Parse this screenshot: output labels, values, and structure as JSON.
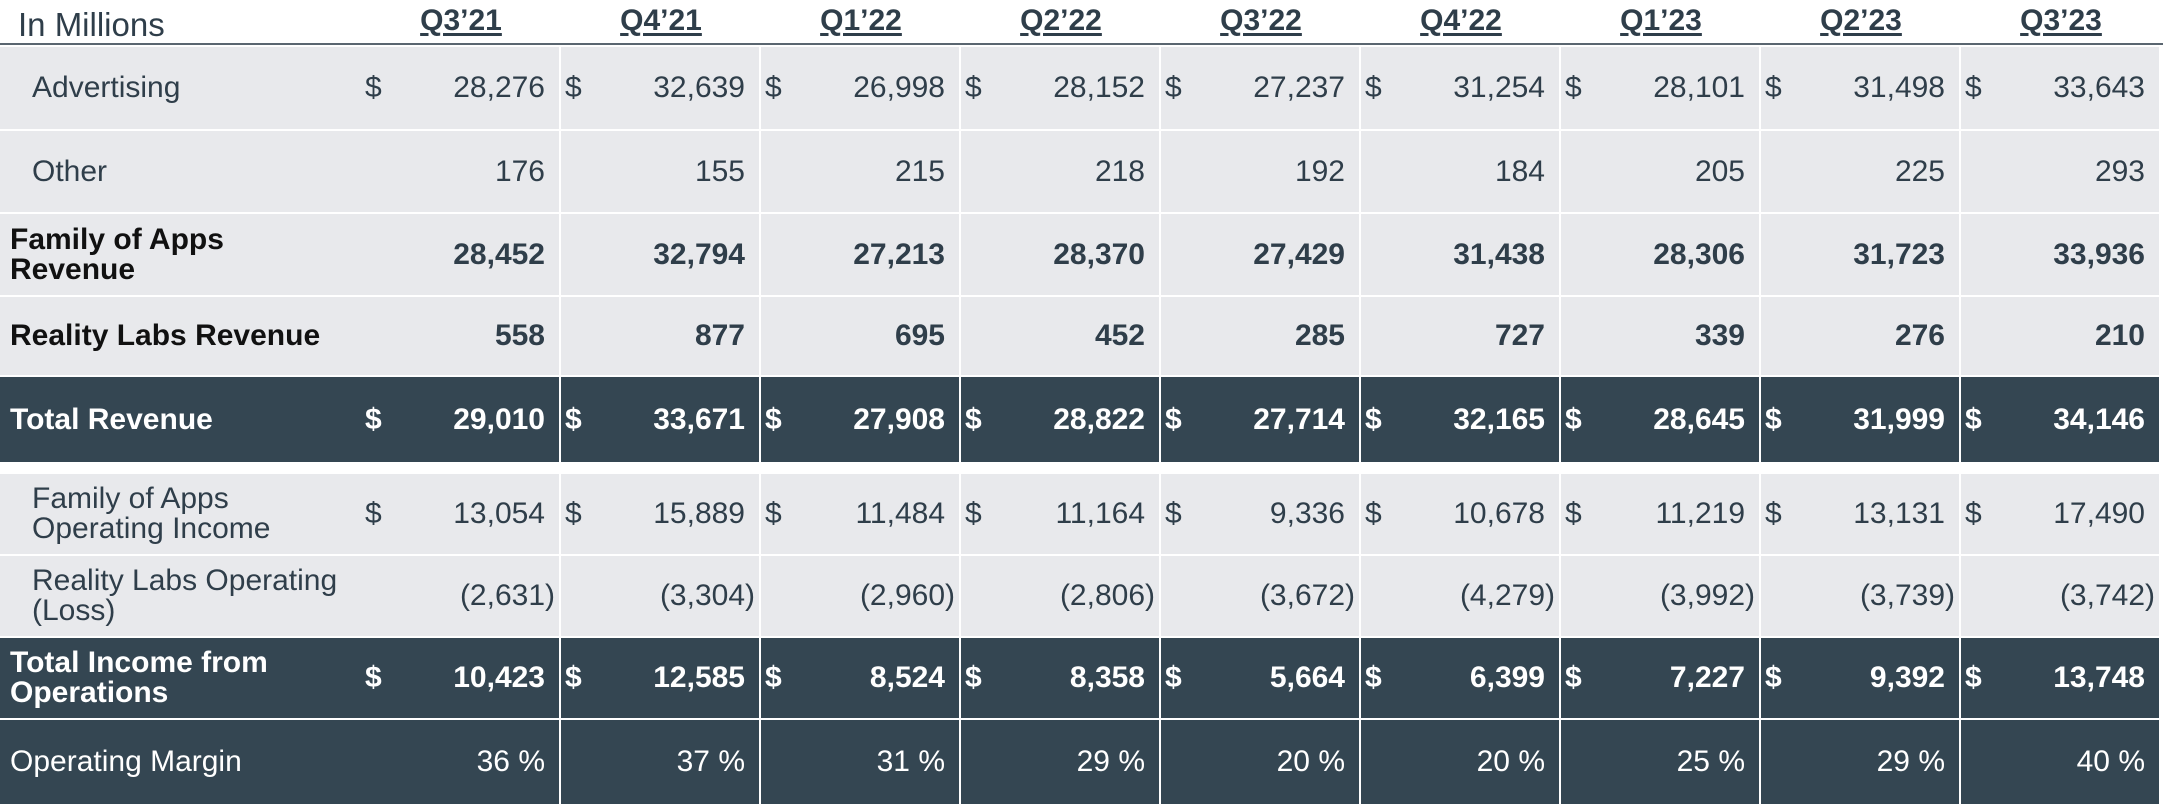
{
  "header": {
    "corner_label": "In Millions",
    "quarters": [
      "Q3’21",
      "Q4’21",
      "Q1’22",
      "Q2’22",
      "Q3’22",
      "Q4’22",
      "Q1’23",
      "Q2’23",
      "Q3’23"
    ]
  },
  "colors": {
    "light_row_bg": "#e8e9ec",
    "dark_row_bg": "#344652",
    "text": "#2f3e4a"
  },
  "rows": [
    {
      "label": "Advertising",
      "values": [
        "28,276",
        "32,639",
        "26,998",
        "28,152",
        "27,237",
        "31,254",
        "28,101",
        "31,498",
        "33,643"
      ],
      "dollar": "$"
    },
    {
      "label": "Other",
      "values": [
        "176",
        "155",
        "215",
        "218",
        "192",
        "184",
        "205",
        "225",
        "293"
      ]
    },
    {
      "label": "Family of Apps Revenue",
      "values": [
        "28,452",
        "32,794",
        "27,213",
        "28,370",
        "27,429",
        "31,438",
        "28,306",
        "31,723",
        "33,936"
      ]
    },
    {
      "label": "Reality Labs Revenue",
      "values": [
        "558",
        "877",
        "695",
        "452",
        "285",
        "727",
        "339",
        "276",
        "210"
      ]
    },
    {
      "label": "Total Revenue",
      "values": [
        "29,010",
        "33,671",
        "27,908",
        "28,822",
        "27,714",
        "32,165",
        "28,645",
        "31,999",
        "34,146"
      ],
      "dollar": "$"
    },
    {
      "label": "Family of Apps Operating Income",
      "values": [
        "13,054",
        "15,889",
        "11,484",
        "11,164",
        "9,336",
        "10,678",
        "11,219",
        "13,131",
        "17,490"
      ],
      "dollar": "$"
    },
    {
      "label": "Reality Labs Operating (Loss)",
      "values": [
        "(2,631)",
        "(3,304)",
        "(2,960)",
        "(2,806)",
        "(3,672)",
        "(4,279)",
        "(3,992)",
        "(3,739)",
        "(3,742)"
      ]
    },
    {
      "label": "Total Income from Operations",
      "values": [
        "10,423",
        "12,585",
        "8,524",
        "8,358",
        "5,664",
        "6,399",
        "7,227",
        "9,392",
        "13,748"
      ],
      "dollar": "$"
    },
    {
      "label": "Operating Margin",
      "values": [
        "36 %",
        "37 %",
        "31 %",
        "29 %",
        "20 %",
        "20 %",
        "25 %",
        "29 %",
        "40 %"
      ]
    }
  ]
}
